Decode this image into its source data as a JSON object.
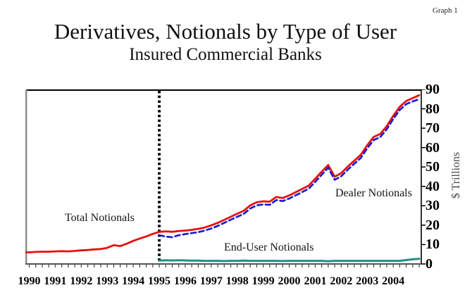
{
  "page": {
    "corner_label": "Graph 1"
  },
  "chart_data": {
    "type": "line",
    "title": "Derivatives, Notionals by Type of User",
    "subtitle": "Insured Commercial Banks",
    "ylabel": "$ Trillions",
    "ylim": [
      0,
      90
    ],
    "yticks": [
      0,
      10,
      20,
      30,
      40,
      50,
      60,
      70,
      80,
      90
    ],
    "xlim": [
      1989.85,
      2005.08
    ],
    "x_tick_interval_years": 0.25,
    "categories": [
      "1990",
      "1991",
      "1992",
      "1993",
      "1994",
      "1995",
      "1996",
      "1997",
      "1998",
      "1999",
      "2000",
      "2001",
      "2002",
      "2003",
      "2004"
    ],
    "vline_x": 1995,
    "grid": "off",
    "legend_position": "inline-annotations",
    "annotations": [
      {
        "id": "total",
        "text": "Total Notionals"
      },
      {
        "id": "end_user",
        "text": "End-User Notionals"
      },
      {
        "id": "dealer",
        "text": "Dealer Notionals"
      }
    ],
    "series": [
      {
        "name": "Total Notionals",
        "color": "#e8100c",
        "style": "solid",
        "width": 2.8,
        "t0": 1990.0,
        "dt": 0.25,
        "extend_left": true,
        "values": [
          6.0,
          6.2,
          6.3,
          6.3,
          6.5,
          6.6,
          6.5,
          6.7,
          7.0,
          7.2,
          7.5,
          7.7,
          8.3,
          9.7,
          9.2,
          10.4,
          11.9,
          13.1,
          14.2,
          15.5,
          16.5,
          16.8,
          16.6,
          17.0,
          17.2,
          17.6,
          18.1,
          18.8,
          19.9,
          21.2,
          22.7,
          24.3,
          25.9,
          27.4,
          30.2,
          31.8,
          32.3,
          32.1,
          34.5,
          34.0,
          35.3,
          37.0,
          38.7,
          40.4,
          43.9,
          47.6,
          51.0,
          45.0,
          46.8,
          50.2,
          53.2,
          56.2,
          61.2,
          65.5,
          67.0,
          71.0,
          76.3,
          81.0,
          84.0,
          85.5,
          87.0
        ]
      },
      {
        "name": "Dealer Notionals",
        "color": "#1c1ccf",
        "style": "dashed",
        "width": 2.7,
        "t0": 1995.0,
        "dt": 0.25,
        "extend_left": false,
        "values": [
          14.8,
          14.1,
          13.8,
          14.8,
          15.4,
          15.9,
          16.4,
          17.2,
          18.3,
          19.6,
          21.2,
          22.8,
          24.3,
          25.8,
          28.6,
          30.2,
          30.7,
          30.5,
          32.9,
          32.4,
          33.7,
          35.4,
          37.1,
          38.8,
          42.3,
          46.0,
          49.6,
          43.4,
          45.2,
          48.6,
          51.6,
          54.6,
          59.6,
          63.9,
          65.4,
          69.4,
          74.7,
          79.4,
          82.4,
          83.8,
          85.0
        ]
      },
      {
        "name": "End-User Notionals",
        "color": "#1f9089",
        "style": "solid",
        "width": 3,
        "t0": 1995.0,
        "dt": 0.25,
        "extend_left": false,
        "values": [
          1.7,
          1.9,
          1.8,
          1.9,
          1.8,
          1.7,
          1.7,
          1.6,
          1.6,
          1.6,
          1.5,
          1.6,
          1.6,
          1.7,
          1.6,
          1.6,
          1.6,
          1.6,
          1.6,
          1.5,
          1.6,
          1.6,
          1.6,
          1.6,
          1.6,
          1.6,
          1.4,
          1.6,
          1.6,
          1.6,
          1.6,
          1.6,
          1.6,
          1.6,
          1.6,
          1.6,
          1.6,
          1.6,
          2.0,
          2.4,
          2.7
        ]
      }
    ]
  }
}
